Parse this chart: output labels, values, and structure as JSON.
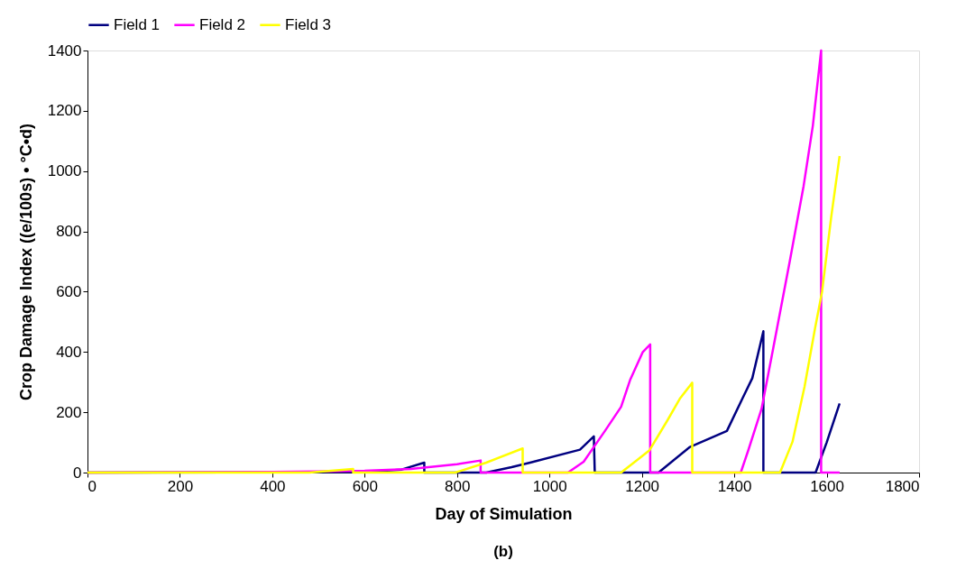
{
  "chart_data": {
    "type": "line",
    "xlabel": "Day of Simulation",
    "ylabel": "Crop Damage Index ((e/100s) • °C•d)",
    "annotations": [
      "(b)"
    ],
    "xlim": [
      0,
      1800
    ],
    "xticks": [
      0,
      200,
      400,
      600,
      800,
      1000,
      1200,
      1400,
      1600,
      1800
    ],
    "ylim": [
      0,
      1400
    ],
    "yticks": [
      0,
      200,
      400,
      600,
      800,
      1000,
      1200,
      1400
    ],
    "grid": false,
    "legend": "top",
    "marker": "none",
    "line_style": "solid",
    "series": [
      {
        "name": "Field 1",
        "color": "#000080",
        "x": [
          0,
          600,
          680,
          729,
          729,
          863,
          918,
          958,
          1066,
          1096,
          1098,
          1236,
          1303,
          1384,
          1418,
          1439,
          1463,
          1463,
          1576,
          1600,
          1628
        ],
        "values": [
          0,
          2,
          10,
          33,
          0,
          0,
          18,
          33,
          76,
          120,
          0,
          0,
          84,
          138,
          247,
          313,
          469,
          0,
          0,
          100,
          229
        ]
      },
      {
        "name": "Field 2",
        "color": "#ff00ff",
        "x": [
          0,
          400,
          500,
          600,
          700,
          800,
          851,
          851,
          1040,
          1074,
          1120,
          1155,
          1175,
          1202,
          1218,
          1218,
          1414,
          1431,
          1459,
          1485,
          1520,
          1550,
          1570,
          1588,
          1588,
          1628
        ],
        "values": [
          0,
          2,
          4,
          6,
          12,
          28,
          40,
          0,
          0,
          36,
          138,
          218,
          309,
          400,
          425,
          0,
          0,
          77,
          211,
          418,
          700,
          950,
          1150,
          1400,
          0,
          0
        ]
      },
      {
        "name": "Field 3",
        "color": "#ffff00",
        "x": [
          0,
          480,
          575,
          575,
          796,
          863,
          942,
          942,
          1155,
          1216,
          1256,
          1283,
          1309,
          1309,
          1499,
          1526,
          1552,
          1575,
          1590,
          1610,
          1628
        ],
        "values": [
          0,
          0,
          12,
          0,
          0,
          33,
          80,
          0,
          0,
          73,
          175,
          247,
          298,
          0,
          0,
          102,
          284,
          480,
          600,
          850,
          1050
        ]
      }
    ]
  }
}
